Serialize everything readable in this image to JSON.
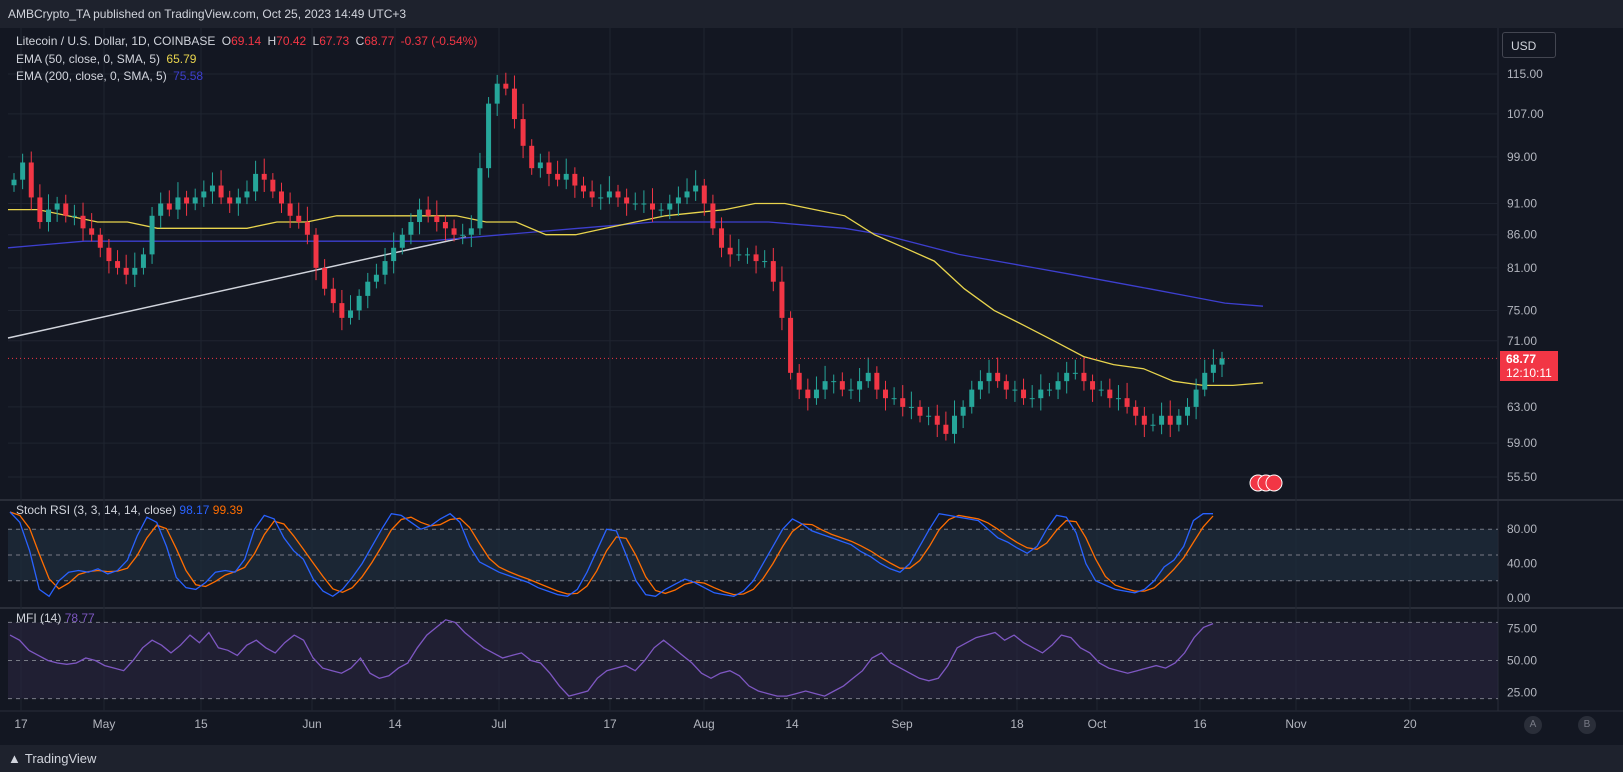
{
  "header": {
    "publisher_text": "AMBCrypto_TA published on TradingView.com, Oct 25, 2023 14:49 UTC+3"
  },
  "footer": {
    "logo_text": "TradingView",
    "btn_a": "A",
    "btn_b": "B"
  },
  "colors": {
    "up": "#26a69a",
    "down": "#f23645",
    "ema50": "#e8d44d",
    "ema200": "#3d3fcf",
    "stoch_k": "#2962ff",
    "stoch_d": "#ff6d00",
    "mfi": "#7e57c2",
    "trendline": "#d1d4dc",
    "background": "#131722"
  },
  "legend": {
    "symbol": "Litecoin / U.S. Dollar, 1D, COINBASE",
    "o_label": "O",
    "o_value": "69.14",
    "h_label": "H",
    "h_value": "70.42",
    "l_label": "L",
    "l_value": "67.73",
    "c_label": "C",
    "c_value": "68.77",
    "change": "-0.37 (-0.54%)",
    "ema50_label": "EMA (50, close, 0, SMA, 5)",
    "ema50_value": "65.79",
    "ema200_label": "EMA (200, close, 0, SMA, 5)",
    "ema200_value": "75.58"
  },
  "currency_button": "USD",
  "last_price": {
    "value": "68.77",
    "countdown": "12:10:11"
  },
  "stoch_pane": {
    "label": "Stoch RSI (3, 3, 14, 14, close)",
    "k_value": "98.17",
    "d_value": "99.39"
  },
  "mfi_pane": {
    "label": "MFI (14)",
    "value": "78.77"
  },
  "chart_data": [
    {
      "type": "candlestick",
      "title": "Litecoin / U.S. Dollar, 1D, COINBASE",
      "ylim": [
        52,
        120
      ],
      "y_scale": "log",
      "y_ticks": [
        "115.00",
        "107.00",
        "99.00",
        "91.00",
        "86.00",
        "81.00",
        "75.00",
        "71.00",
        "63.00",
        "59.00",
        "55.50"
      ],
      "x_ticks": [
        "17",
        "May",
        "15",
        "Jun",
        "14",
        "Jul",
        "17",
        "Aug",
        "14",
        "Sep",
        "18",
        "Oct",
        "16",
        "Nov",
        "20"
      ],
      "approx_close_series": [
        95,
        98,
        92,
        88,
        90,
        91,
        89,
        89,
        87,
        86,
        84,
        82,
        81,
        80,
        81,
        83,
        89,
        91,
        90,
        92,
        91,
        92,
        93,
        94,
        92,
        91,
        92,
        93,
        96,
        95,
        93,
        91,
        89,
        88,
        86,
        81,
        78,
        76,
        74,
        75,
        77,
        79,
        80,
        82,
        84,
        86,
        88,
        90,
        89,
        88,
        87,
        86,
        86,
        87,
        97,
        109,
        113,
        112,
        106,
        101,
        97,
        98,
        96,
        95,
        96,
        94,
        93,
        92,
        92,
        93,
        92,
        91,
        91,
        91,
        90,
        90,
        91,
        92,
        93,
        94,
        91,
        87,
        84,
        83,
        83,
        83,
        82,
        82,
        79,
        74,
        67,
        65,
        64,
        65,
        66,
        66,
        65,
        65,
        66,
        67,
        65,
        64,
        64,
        63,
        63,
        62,
        62,
        61,
        60,
        62,
        63,
        65,
        66,
        67,
        66,
        65,
        65,
        64,
        64,
        65,
        65,
        66,
        67,
        67,
        66,
        65,
        65,
        64,
        64,
        63,
        62,
        61,
        61,
        62,
        61,
        62,
        63,
        65,
        67,
        68,
        68.77
      ],
      "series": [
        {
          "name": "EMA (50, close, 0, SMA, 5)",
          "last_value": 65.79,
          "approx_values": [
            90,
            90,
            89,
            88,
            88,
            87,
            87,
            87,
            87,
            88,
            88,
            89,
            89,
            89,
            89,
            89,
            88,
            88,
            86,
            86,
            87,
            88,
            89,
            89.5,
            90,
            91,
            91,
            90,
            89,
            86,
            84,
            82,
            78,
            75,
            73,
            71,
            69,
            68,
            67.5,
            66,
            65.5,
            65.5,
            65.79
          ]
        },
        {
          "name": "EMA (200, close, 0, SMA, 5)",
          "last_value": 75.58,
          "approx_values": [
            84,
            84.5,
            85,
            85,
            85,
            85,
            85,
            85,
            85,
            85,
            85,
            85,
            85.5,
            86,
            86.5,
            87,
            87.5,
            88,
            88,
            88,
            88,
            87.5,
            87,
            86,
            84.5,
            83,
            82,
            81,
            80,
            79,
            78,
            77,
            76,
            75.58
          ]
        }
      ],
      "trendline": {
        "from": [
          "Apr 8",
          72
        ],
        "to": [
          "Jun 27",
          86
        ]
      },
      "last_price": 68.77
    },
    {
      "type": "line",
      "title": "Stoch RSI (3, 3, 14, 14, close)",
      "ylim": [
        0,
        100
      ],
      "y_ticks": [
        "80.00",
        "40.00",
        "0.00"
      ],
      "series": [
        {
          "name": "K",
          "last_value": 98.17
        },
        {
          "name": "D",
          "last_value": 99.39
        }
      ]
    },
    {
      "type": "line",
      "title": "MFI (14)",
      "ylim": [
        15,
        85
      ],
      "y_ticks": [
        "75.00",
        "50.00",
        "25.00"
      ],
      "series": [
        {
          "name": "MFI",
          "last_value": 78.77
        }
      ]
    }
  ]
}
